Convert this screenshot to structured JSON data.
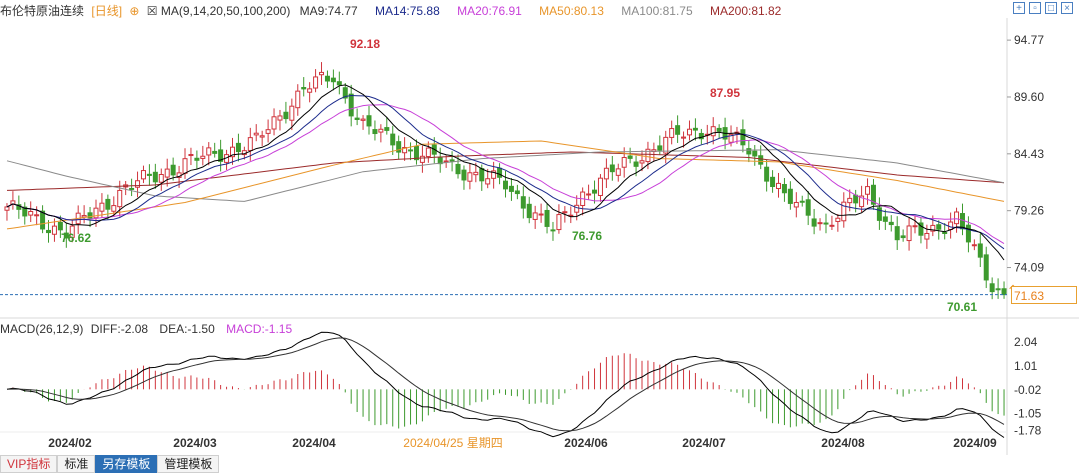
{
  "header": {
    "instrument": "布伦特原油连续",
    "period": "[日线]",
    "ma_label": "MA(9,14,20,50,100,200)",
    "ma9": "MA9:74.77",
    "ma14": "MA14:75.88",
    "ma20": "MA20:76.91",
    "ma50": "MA50:80.13",
    "ma100": "MA100:81.75",
    "ma200": "MA200:81.82"
  },
  "macd_header": {
    "label": "MACD(26,12,9)",
    "diff": "DIFF:-2.08",
    "dea": "DEA:-1.50",
    "macd": "MACD:-1.15"
  },
  "toolbar": [
    "VIP指标",
    "标准",
    "另存模板",
    "管理模板"
  ],
  "last_price_label": "71.63",
  "colors": {
    "up": "#d0343c",
    "down": "#3d9a2e",
    "ma9": "#000000",
    "ma14": "#1c2b8c",
    "ma20": "#c73fd8",
    "ma50": "#e8952a",
    "ma100": "#8a8a8a",
    "ma200": "#9b2a2a",
    "diff": "#000000",
    "dea": "#333333",
    "axis_text": "#333333",
    "cursor_date": "#e8952a"
  },
  "chart_data": {
    "type": "candlestick",
    "price_axis_ticks": [
      "94.77",
      "89.60",
      "84.43",
      "79.26",
      "74.09"
    ],
    "macd_axis_ticks": [
      "2.04",
      "1.01",
      "-0.02",
      "-1.05",
      "-1.78"
    ],
    "x_tick_labels": [
      "2024/02",
      "2024/03",
      "2024/04",
      "2024/06",
      "2024/07",
      "2024/08",
      "2024/09"
    ],
    "cursor_date_label": "2024/04/25 星期四",
    "price_ylim": [
      69.5,
      96.6
    ],
    "macd_ylim": [
      -2.1,
      2.3
    ],
    "annotations": [
      {
        "label": "92.18",
        "type": "high"
      },
      {
        "label": "87.95",
        "type": "high"
      },
      {
        "label": "76.62",
        "type": "low"
      },
      {
        "label": "76.76",
        "type": "low"
      },
      {
        "label": "70.61",
        "type": "low"
      }
    ],
    "last_price": 71.63,
    "ma_lines": [
      {
        "name": "MA9",
        "last": 74.77
      },
      {
        "name": "MA14",
        "last": 75.88
      },
      {
        "name": "MA20",
        "last": 76.91
      },
      {
        "name": "MA50",
        "last": 80.13
      },
      {
        "name": "MA100",
        "last": 81.75
      },
      {
        "name": "MA200",
        "last": 81.82
      }
    ],
    "macd_last": {
      "diff": -2.08,
      "dea": -1.5,
      "macd": -1.15
    },
    "close_anchors": [
      {
        "idx": 0,
        "close": 79.6
      },
      {
        "idx": 10,
        "close": 77.3
      },
      {
        "idx": 20,
        "close": 81.3
      },
      {
        "idx": 30,
        "close": 83.6
      },
      {
        "idx": 42,
        "close": 85.5
      },
      {
        "idx": 50,
        "close": 90.4
      },
      {
        "idx": 55,
        "close": 91.4
      },
      {
        "idx": 60,
        "close": 87.0
      },
      {
        "idx": 67,
        "close": 85.0
      },
      {
        "idx": 75,
        "close": 83.3
      },
      {
        "idx": 84,
        "close": 81.6
      },
      {
        "idx": 92,
        "close": 77.4
      },
      {
        "idx": 97,
        "close": 80.8
      },
      {
        "idx": 104,
        "close": 83.5
      },
      {
        "idx": 113,
        "close": 86.1
      },
      {
        "idx": 118,
        "close": 86.8
      },
      {
        "idx": 125,
        "close": 85.0
      },
      {
        "idx": 131,
        "close": 80.4
      },
      {
        "idx": 138,
        "close": 78.0
      },
      {
        "idx": 145,
        "close": 81.0
      },
      {
        "idx": 150,
        "close": 76.8
      },
      {
        "idx": 155,
        "close": 77.5
      },
      {
        "idx": 160,
        "close": 78.5
      },
      {
        "idx": 166,
        "close": 72.5
      },
      {
        "idx": 168,
        "close": 71.6
      }
    ],
    "ma_anchors": {
      "MA50": [
        [
          0,
          77.6
        ],
        [
          30,
          80.0
        ],
        [
          55,
          83.4
        ],
        [
          70,
          85.3
        ],
        [
          90,
          85.6
        ],
        [
          110,
          84.0
        ],
        [
          130,
          83.7
        ],
        [
          150,
          82.0
        ],
        [
          168,
          80.1
        ]
      ],
      "MA100": [
        [
          0,
          83.8
        ],
        [
          10,
          82.4
        ],
        [
          25,
          80.6
        ],
        [
          40,
          80.1
        ],
        [
          60,
          82.8
        ],
        [
          80,
          84.0
        ],
        [
          100,
          84.6
        ],
        [
          130,
          84.8
        ],
        [
          150,
          83.6
        ],
        [
          168,
          81.8
        ]
      ],
      "MA200": [
        [
          0,
          81.1
        ],
        [
          25,
          81.6
        ],
        [
          55,
          83.6
        ],
        [
          75,
          84.2
        ],
        [
          95,
          84.6
        ],
        [
          125,
          84.1
        ],
        [
          150,
          82.5
        ],
        [
          168,
          81.8
        ]
      ]
    }
  }
}
